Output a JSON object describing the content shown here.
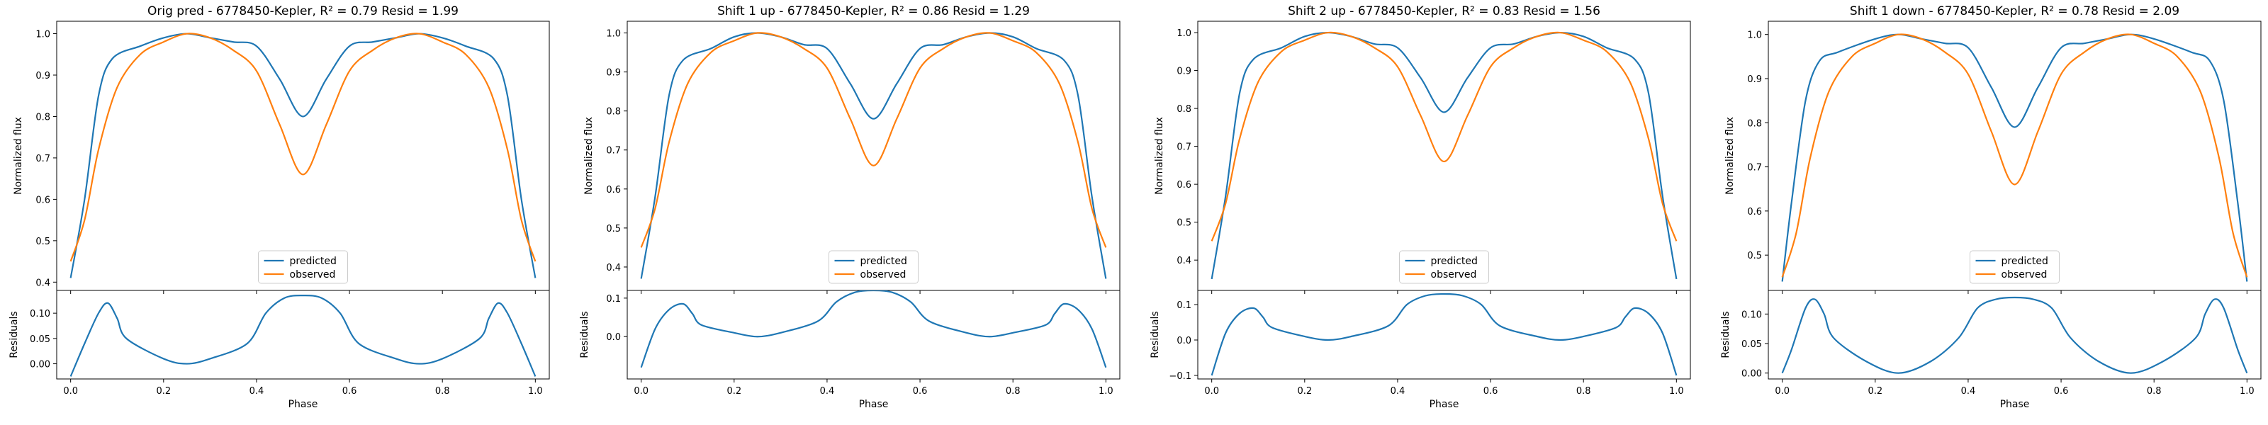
{
  "colors": {
    "predicted": "#1f77b4",
    "observed": "#ff7f0e"
  },
  "chart_data": [
    {
      "type": "line",
      "title": "Orig pred - 6778450-Kepler, R² = 0.79 Resid = 1.99",
      "xlabel": "Phase",
      "ylabel": "Normalized flux",
      "resid_ylabel": "Residuals",
      "xlim": [
        -0.03,
        1.03
      ],
      "ylim": [
        0.38,
        1.03
      ],
      "resid_ylim": [
        -0.03,
        0.145
      ],
      "xticks": [
        0.0,
        0.2,
        0.4,
        0.6,
        0.8,
        1.0
      ],
      "xtick_labels": [
        "0.0",
        "0.2",
        "0.4",
        "0.6",
        "0.8",
        "1.0"
      ],
      "yticks": [
        0.4,
        0.5,
        0.6,
        0.7,
        0.8,
        0.9,
        1.0
      ],
      "ytick_labels": [
        "0.4",
        "0.5",
        "0.6",
        "0.7",
        "0.8",
        "0.9",
        "1.0"
      ],
      "resid_yticks": [
        0.0,
        0.05,
        0.1
      ],
      "resid_ytick_labels": [
        "0.00",
        "0.05",
        "0.10"
      ],
      "legend": {
        "placement": "lower-center",
        "entries": [
          "predicted",
          "observed"
        ]
      },
      "grid": false,
      "series": [
        {
          "name": "predicted",
          "x": [
            0.0,
            0.03,
            0.06,
            0.09,
            0.15,
            0.2,
            0.25,
            0.3,
            0.35,
            0.4,
            0.45,
            0.5,
            0.55,
            0.6,
            0.65,
            0.7,
            0.75,
            0.8,
            0.85,
            0.91,
            0.94,
            0.97,
            1.0
          ],
          "values": [
            0.41,
            0.6,
            0.85,
            0.94,
            0.97,
            0.99,
            1.0,
            0.99,
            0.98,
            0.97,
            0.89,
            0.8,
            0.89,
            0.97,
            0.98,
            0.99,
            1.0,
            0.99,
            0.97,
            0.94,
            0.85,
            0.6,
            0.41
          ]
        },
        {
          "name": "observed",
          "x": [
            0.0,
            0.03,
            0.06,
            0.1,
            0.15,
            0.2,
            0.25,
            0.3,
            0.35,
            0.4,
            0.45,
            0.5,
            0.55,
            0.6,
            0.65,
            0.7,
            0.75,
            0.8,
            0.85,
            0.9,
            0.94,
            0.97,
            1.0
          ],
          "values": [
            0.45,
            0.55,
            0.72,
            0.87,
            0.95,
            0.98,
            1.0,
            0.99,
            0.96,
            0.91,
            0.78,
            0.66,
            0.78,
            0.91,
            0.96,
            0.99,
            1.0,
            0.98,
            0.95,
            0.87,
            0.72,
            0.55,
            0.45
          ]
        }
      ],
      "residuals": {
        "x": [
          0.0,
          0.03,
          0.06,
          0.08,
          0.1,
          0.12,
          0.2,
          0.25,
          0.3,
          0.38,
          0.42,
          0.46,
          0.5,
          0.54,
          0.58,
          0.62,
          0.7,
          0.75,
          0.8,
          0.88,
          0.9,
          0.92,
          0.94,
          0.97,
          1.0
        ],
        "values": [
          -0.025,
          0.04,
          0.1,
          0.12,
          0.09,
          0.05,
          0.01,
          0.0,
          0.01,
          0.04,
          0.1,
          0.13,
          0.135,
          0.13,
          0.1,
          0.04,
          0.01,
          0.0,
          0.01,
          0.05,
          0.09,
          0.12,
          0.1,
          0.04,
          -0.025
        ]
      }
    },
    {
      "type": "line",
      "title": "Shift 1 up - 6778450-Kepler, R² = 0.86 Resid = 1.29",
      "xlabel": "Phase",
      "ylabel": "Normalized flux",
      "resid_ylabel": "Residuals",
      "xlim": [
        -0.03,
        1.03
      ],
      "ylim": [
        0.34,
        1.03
      ],
      "resid_ylim": [
        -0.11,
        0.12
      ],
      "xticks": [
        0.0,
        0.2,
        0.4,
        0.6,
        0.8,
        1.0
      ],
      "xtick_labels": [
        "0.0",
        "0.2",
        "0.4",
        "0.6",
        "0.8",
        "1.0"
      ],
      "yticks": [
        0.4,
        0.5,
        0.6,
        0.7,
        0.8,
        0.9,
        1.0
      ],
      "ytick_labels": [
        "0.4",
        "0.5",
        "0.6",
        "0.7",
        "0.8",
        "0.9",
        "1.0"
      ],
      "resid_yticks": [
        0.0,
        0.1
      ],
      "resid_ytick_labels": [
        "0.0",
        "0.1"
      ],
      "legend": {
        "placement": "lower-center",
        "entries": [
          "predicted",
          "observed"
        ]
      },
      "grid": false,
      "series": [
        {
          "name": "predicted",
          "x": [
            0.0,
            0.03,
            0.06,
            0.09,
            0.15,
            0.2,
            0.25,
            0.3,
            0.35,
            0.4,
            0.45,
            0.5,
            0.55,
            0.6,
            0.65,
            0.7,
            0.75,
            0.8,
            0.85,
            0.91,
            0.94,
            0.97,
            1.0
          ],
          "values": [
            0.37,
            0.58,
            0.84,
            0.93,
            0.96,
            0.99,
            1.0,
            0.99,
            0.97,
            0.96,
            0.87,
            0.78,
            0.87,
            0.96,
            0.97,
            0.99,
            1.0,
            0.99,
            0.96,
            0.93,
            0.84,
            0.58,
            0.37
          ]
        },
        {
          "name": "observed",
          "x": [
            0.0,
            0.03,
            0.06,
            0.1,
            0.15,
            0.2,
            0.25,
            0.3,
            0.35,
            0.4,
            0.45,
            0.5,
            0.55,
            0.6,
            0.65,
            0.7,
            0.75,
            0.8,
            0.85,
            0.9,
            0.94,
            0.97,
            1.0
          ],
          "values": [
            0.45,
            0.55,
            0.72,
            0.87,
            0.95,
            0.98,
            1.0,
            0.99,
            0.96,
            0.91,
            0.78,
            0.66,
            0.78,
            0.91,
            0.96,
            0.99,
            1.0,
            0.98,
            0.95,
            0.87,
            0.72,
            0.55,
            0.45
          ]
        }
      ],
      "residuals": {
        "x": [
          0.0,
          0.03,
          0.06,
          0.09,
          0.11,
          0.13,
          0.2,
          0.25,
          0.3,
          0.38,
          0.42,
          0.46,
          0.5,
          0.54,
          0.58,
          0.62,
          0.7,
          0.75,
          0.8,
          0.87,
          0.89,
          0.91,
          0.94,
          0.97,
          1.0
        ],
        "values": [
          -0.08,
          0.02,
          0.07,
          0.085,
          0.06,
          0.03,
          0.01,
          0.0,
          0.01,
          0.04,
          0.09,
          0.115,
          0.12,
          0.115,
          0.09,
          0.04,
          0.01,
          0.0,
          0.01,
          0.03,
          0.06,
          0.085,
          0.07,
          0.02,
          -0.08
        ]
      }
    },
    {
      "type": "line",
      "title": "Shift 2 up - 6778450-Kepler, R² = 0.83 Resid = 1.56",
      "xlabel": "Phase",
      "ylabel": "Normalized flux",
      "resid_ylabel": "Residuals",
      "xlim": [
        -0.03,
        1.03
      ],
      "ylim": [
        0.32,
        1.03
      ],
      "resid_ylim": [
        -0.11,
        0.14
      ],
      "xticks": [
        0.0,
        0.2,
        0.4,
        0.6,
        0.8,
        1.0
      ],
      "xtick_labels": [
        "0.0",
        "0.2",
        "0.4",
        "0.6",
        "0.8",
        "1.0"
      ],
      "yticks": [
        0.4,
        0.5,
        0.6,
        0.7,
        0.8,
        0.9,
        1.0
      ],
      "ytick_labels": [
        "0.4",
        "0.5",
        "0.6",
        "0.7",
        "0.8",
        "0.9",
        "1.0"
      ],
      "resid_yticks": [
        -0.1,
        0.0,
        0.1
      ],
      "resid_ytick_labels": [
        "−0.1",
        "0.0",
        "0.1"
      ],
      "legend": {
        "placement": "lower-center",
        "entries": [
          "predicted",
          "observed"
        ]
      },
      "grid": false,
      "series": [
        {
          "name": "predicted",
          "x": [
            0.0,
            0.03,
            0.06,
            0.09,
            0.15,
            0.2,
            0.25,
            0.3,
            0.35,
            0.4,
            0.45,
            0.5,
            0.55,
            0.6,
            0.65,
            0.7,
            0.75,
            0.8,
            0.85,
            0.91,
            0.94,
            0.97,
            1.0
          ],
          "values": [
            0.35,
            0.57,
            0.84,
            0.93,
            0.96,
            0.99,
            1.0,
            0.99,
            0.97,
            0.96,
            0.88,
            0.79,
            0.88,
            0.96,
            0.97,
            0.99,
            1.0,
            0.99,
            0.96,
            0.93,
            0.84,
            0.57,
            0.35
          ]
        },
        {
          "name": "observed",
          "x": [
            0.0,
            0.03,
            0.06,
            0.1,
            0.15,
            0.2,
            0.25,
            0.3,
            0.35,
            0.4,
            0.45,
            0.5,
            0.55,
            0.6,
            0.65,
            0.7,
            0.75,
            0.8,
            0.85,
            0.9,
            0.94,
            0.97,
            1.0
          ],
          "values": [
            0.45,
            0.55,
            0.72,
            0.87,
            0.95,
            0.98,
            1.0,
            0.99,
            0.96,
            0.91,
            0.78,
            0.66,
            0.78,
            0.91,
            0.96,
            0.99,
            1.0,
            0.98,
            0.95,
            0.87,
            0.72,
            0.55,
            0.45
          ]
        }
      ],
      "residuals": {
        "x": [
          0.0,
          0.03,
          0.06,
          0.09,
          0.11,
          0.13,
          0.2,
          0.25,
          0.3,
          0.38,
          0.42,
          0.46,
          0.5,
          0.54,
          0.58,
          0.62,
          0.7,
          0.75,
          0.8,
          0.87,
          0.89,
          0.91,
          0.94,
          0.97,
          1.0
        ],
        "values": [
          -0.1,
          0.02,
          0.075,
          0.09,
          0.065,
          0.035,
          0.01,
          0.0,
          0.01,
          0.04,
          0.1,
          0.125,
          0.13,
          0.125,
          0.1,
          0.04,
          0.01,
          0.0,
          0.01,
          0.035,
          0.065,
          0.09,
          0.075,
          0.02,
          -0.1
        ]
      }
    },
    {
      "type": "line",
      "title": "Shift 1 down - 6778450-Kepler, R² = 0.78 Resid = 2.09",
      "xlabel": "Phase",
      "ylabel": "Normalized flux",
      "resid_ylabel": "Residuals",
      "xlim": [
        -0.03,
        1.03
      ],
      "ylim": [
        0.42,
        1.03
      ],
      "resid_ylim": [
        -0.01,
        0.14
      ],
      "xticks": [
        0.0,
        0.2,
        0.4,
        0.6,
        0.8,
        1.0
      ],
      "xtick_labels": [
        "0.0",
        "0.2",
        "0.4",
        "0.6",
        "0.8",
        "1.0"
      ],
      "yticks": [
        0.5,
        0.6,
        0.7,
        0.8,
        0.9,
        1.0
      ],
      "ytick_labels": [
        "0.5",
        "0.6",
        "0.7",
        "0.8",
        "0.9",
        "1.0"
      ],
      "resid_yticks": [
        0.0,
        0.05,
        0.1
      ],
      "resid_ytick_labels": [
        "0.00",
        "0.05",
        "0.10"
      ],
      "legend": {
        "placement": "lower-center",
        "entries": [
          "predicted",
          "observed"
        ]
      },
      "grid": false,
      "series": [
        {
          "name": "predicted",
          "x": [
            0.0,
            0.02,
            0.05,
            0.08,
            0.12,
            0.2,
            0.25,
            0.3,
            0.35,
            0.4,
            0.45,
            0.5,
            0.55,
            0.6,
            0.65,
            0.7,
            0.75,
            0.8,
            0.88,
            0.92,
            0.95,
            0.98,
            1.0
          ],
          "values": [
            0.44,
            0.62,
            0.85,
            0.94,
            0.96,
            0.99,
            1.0,
            0.99,
            0.98,
            0.97,
            0.88,
            0.79,
            0.88,
            0.97,
            0.98,
            0.99,
            1.0,
            0.99,
            0.96,
            0.94,
            0.85,
            0.62,
            0.44
          ]
        },
        {
          "name": "observed",
          "x": [
            0.0,
            0.03,
            0.06,
            0.1,
            0.15,
            0.2,
            0.25,
            0.3,
            0.35,
            0.4,
            0.45,
            0.5,
            0.55,
            0.6,
            0.65,
            0.7,
            0.75,
            0.8,
            0.85,
            0.9,
            0.94,
            0.97,
            1.0
          ],
          "values": [
            0.45,
            0.55,
            0.72,
            0.87,
            0.95,
            0.98,
            1.0,
            0.99,
            0.96,
            0.91,
            0.78,
            0.66,
            0.78,
            0.91,
            0.96,
            0.99,
            1.0,
            0.98,
            0.95,
            0.87,
            0.72,
            0.55,
            0.45
          ]
        }
      ],
      "residuals": {
        "x": [
          0.0,
          0.02,
          0.05,
          0.07,
          0.09,
          0.11,
          0.18,
          0.25,
          0.32,
          0.38,
          0.42,
          0.46,
          0.5,
          0.54,
          0.58,
          0.62,
          0.68,
          0.75,
          0.82,
          0.89,
          0.91,
          0.93,
          0.95,
          0.98,
          1.0
        ],
        "values": [
          0.0,
          0.04,
          0.11,
          0.125,
          0.1,
          0.06,
          0.02,
          0.0,
          0.02,
          0.06,
          0.11,
          0.125,
          0.128,
          0.125,
          0.11,
          0.06,
          0.02,
          0.0,
          0.02,
          0.06,
          0.1,
          0.125,
          0.11,
          0.04,
          0.0
        ]
      }
    }
  ]
}
